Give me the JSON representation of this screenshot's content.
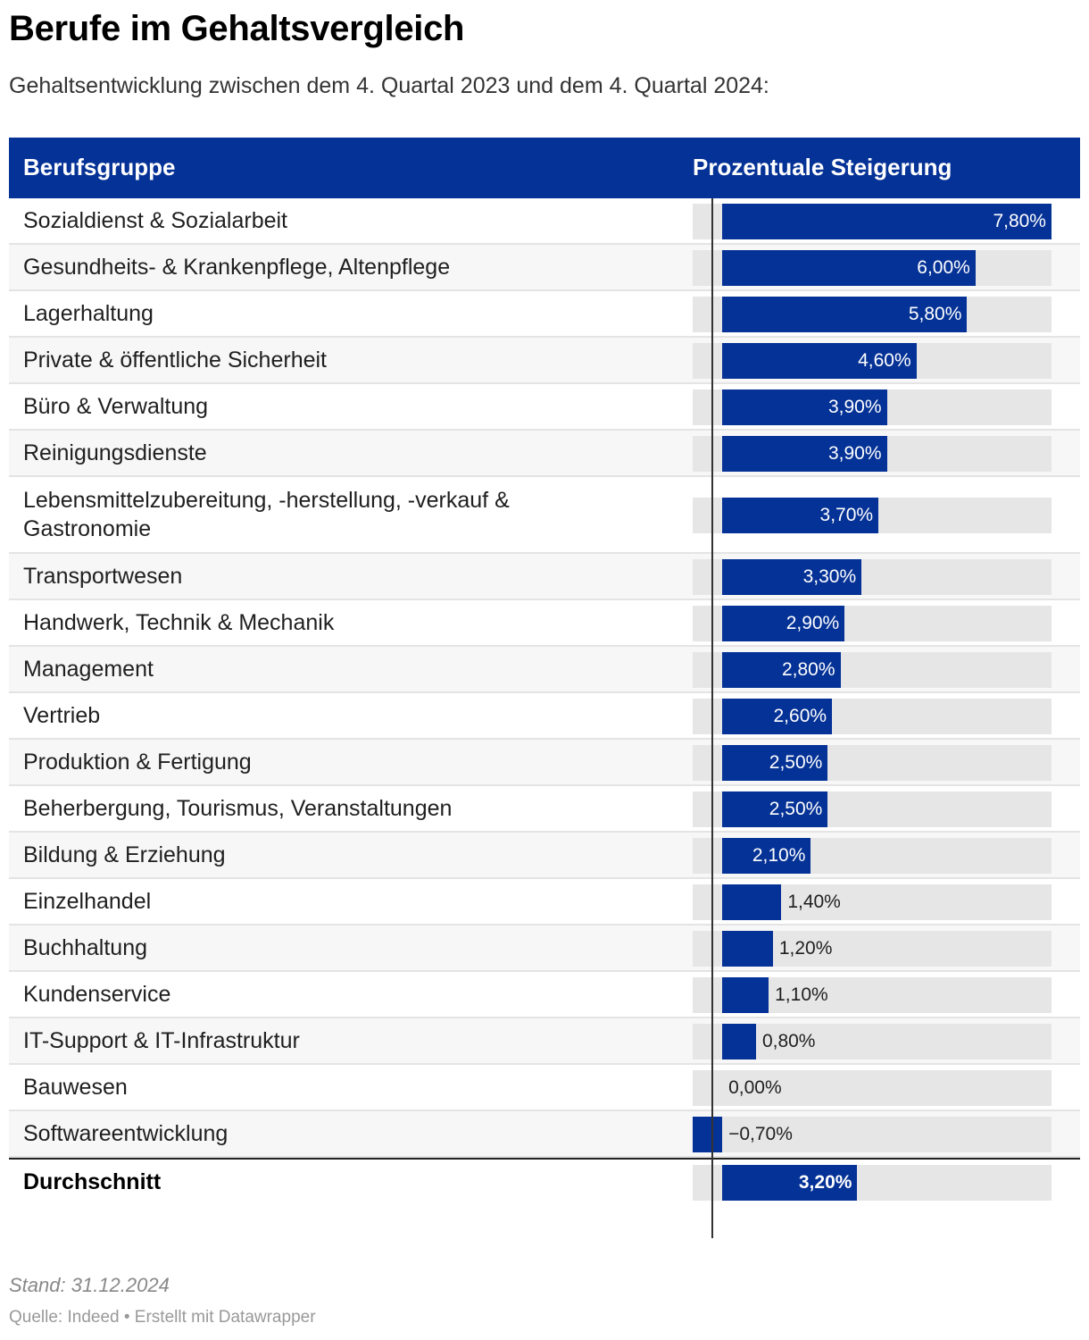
{
  "title": "Berufe im Gehaltsvergleich",
  "subtitle": "Gehaltsentwicklung zwischen dem 4. Quartal 2023 und dem 4. Quartal 2024:",
  "table": {
    "col_label": "Berufsgruppe",
    "col_value": "Prozentuale Steigerung"
  },
  "colors": {
    "bar": "#053296",
    "header": "#053296",
    "track": "#e6e6e6"
  },
  "chart_data": {
    "type": "bar",
    "orientation": "horizontal",
    "xlim": [
      -0.7,
      7.8
    ],
    "unit": "%",
    "rows": [
      {
        "category": "Sozialdienst & Sozialarbeit",
        "value": 7.8,
        "label": "7,80%"
      },
      {
        "category": "Gesundheits- & Krankenpflege, Altenpflege",
        "value": 6.0,
        "label": "6,00%"
      },
      {
        "category": "Lagerhaltung",
        "value": 5.8,
        "label": "5,80%"
      },
      {
        "category": "Private & öffentliche Sicherheit",
        "value": 4.6,
        "label": "4,60%"
      },
      {
        "category": "Büro & Verwaltung",
        "value": 3.9,
        "label": "3,90%"
      },
      {
        "category": "Reinigungsdienste",
        "value": 3.9,
        "label": "3,90%"
      },
      {
        "category": "Lebensmittelzubereitung, -herstellung, -verkauf & Gastronomie",
        "value": 3.7,
        "label": "3,70%"
      },
      {
        "category": "Transportwesen",
        "value": 3.3,
        "label": "3,30%"
      },
      {
        "category": "Handwerk, Technik & Mechanik",
        "value": 2.9,
        "label": "2,90%"
      },
      {
        "category": "Management",
        "value": 2.8,
        "label": "2,80%"
      },
      {
        "category": "Vertrieb",
        "value": 2.6,
        "label": "2,60%"
      },
      {
        "category": "Produktion & Fertigung",
        "value": 2.5,
        "label": "2,50%"
      },
      {
        "category": "Beherbergung, Tourismus, Veranstaltungen",
        "value": 2.5,
        "label": "2,50%"
      },
      {
        "category": "Bildung & Erziehung",
        "value": 2.1,
        "label": "2,10%"
      },
      {
        "category": "Einzelhandel",
        "value": 1.4,
        "label": "1,40%"
      },
      {
        "category": "Buchhaltung",
        "value": 1.2,
        "label": "1,20%"
      },
      {
        "category": "Kundenservice",
        "value": 1.1,
        "label": "1,10%"
      },
      {
        "category": "IT-Support & IT-Infrastruktur",
        "value": 0.8,
        "label": "0,80%"
      },
      {
        "category": "Bauwesen",
        "value": 0.0,
        "label": "0,00%"
      },
      {
        "category": "Softwareentwicklung",
        "value": -0.7,
        "label": "−0,70%"
      }
    ],
    "total": {
      "category": "Durchschnitt",
      "value": 3.2,
      "label": "3,20%"
    }
  },
  "footer": {
    "note": "Stand: 31.12.2024",
    "source": "Quelle: Indeed • Erstellt mit Datawrapper"
  }
}
